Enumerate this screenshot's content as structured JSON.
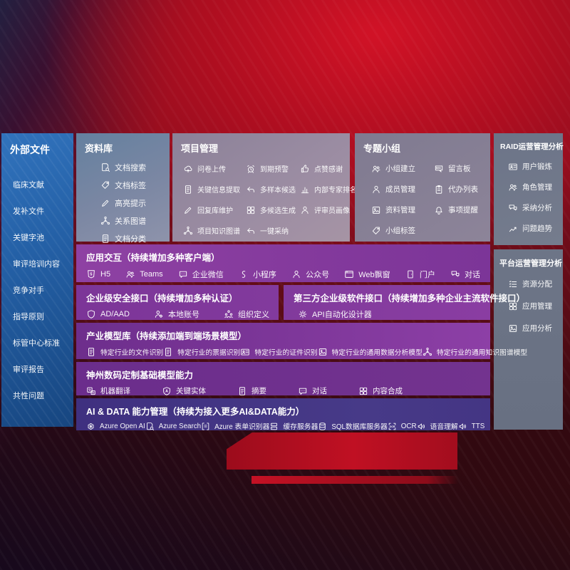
{
  "colors": {
    "background_red": "#a50e20",
    "sidebar_blue": "#2460a6",
    "panel_slate": "#6e7687",
    "panel_mauve": "#968ba1",
    "row_purple": "#7d3897",
    "row_indigo": "#433380"
  },
  "sidebar": {
    "title": "外部文件",
    "items": [
      {
        "label": "临床文献"
      },
      {
        "label": "发补文件"
      },
      {
        "label": "关键字池"
      },
      {
        "label": "审评培训内容"
      },
      {
        "label": "竞争对手"
      },
      {
        "label": "指导原则"
      },
      {
        "label": "标管中心标准"
      },
      {
        "label": "审评报告"
      },
      {
        "label": "共性问题"
      }
    ]
  },
  "panels": {
    "datalib": {
      "title": "资料库",
      "items": [
        {
          "icon": "document-search",
          "label": "文档搜索"
        },
        {
          "icon": "tag",
          "label": "文档标签"
        },
        {
          "icon": "highlight-pen",
          "label": "高亮提示"
        },
        {
          "icon": "knowledge-graph",
          "label": "关系图谱"
        },
        {
          "icon": "document-classify",
          "label": "文档分类"
        }
      ]
    },
    "project": {
      "title": "项目管理",
      "items": [
        {
          "icon": "cloud-upload",
          "label": "问卷上传"
        },
        {
          "icon": "alarm",
          "label": "到期预警"
        },
        {
          "icon": "thumbs-up",
          "label": "点赞感谢"
        },
        {
          "icon": "document-extract",
          "label": "关键信息提取"
        },
        {
          "icon": "reply-arrow",
          "label": "多样本候选"
        },
        {
          "icon": "ranking-chart",
          "label": "内部专家排名"
        },
        {
          "icon": "pencil",
          "label": "回复库维护"
        },
        {
          "icon": "multi-grid",
          "label": "多候选生成"
        },
        {
          "icon": "person",
          "label": "评审员画像"
        },
        {
          "icon": "knowledge-graph",
          "label": "项目知识图谱"
        },
        {
          "icon": "reply-arrow",
          "label": "一键采纳"
        }
      ]
    },
    "groups": {
      "title": "专题小组",
      "items": [
        {
          "icon": "people",
          "label": "小组建立"
        },
        {
          "icon": "message-board",
          "label": "留言板"
        },
        {
          "icon": "person",
          "label": "成员管理"
        },
        {
          "icon": "clipboard",
          "label": "代办列表"
        },
        {
          "icon": "photo",
          "label": "资料管理"
        },
        {
          "icon": "bell",
          "label": "事项提醒"
        },
        {
          "icon": "tag",
          "label": "小组标签"
        }
      ]
    },
    "raid": {
      "title": "RAID运营管理分析",
      "items": [
        {
          "icon": "id-card",
          "label": "用户锻炼"
        },
        {
          "icon": "people",
          "label": "角色管理"
        },
        {
          "icon": "chat-analysis",
          "label": "采纳分析"
        },
        {
          "icon": "trend-chart",
          "label": "问题趋势"
        }
      ]
    },
    "platform": {
      "title": "平台运营管理分析",
      "items": [
        {
          "icon": "allocation-list",
          "label": "资源分配"
        },
        {
          "icon": "app-grid",
          "label": "应用管理"
        },
        {
          "icon": "app-report",
          "label": "应用分析"
        }
      ]
    }
  },
  "rows": {
    "interaction": {
      "title": "应用交互（持续增加多种客户端）",
      "items": [
        {
          "icon": "html5",
          "label": "H5"
        },
        {
          "icon": "teams",
          "label": "Teams"
        },
        {
          "icon": "wechat-work",
          "label": "企业微信"
        },
        {
          "icon": "mini-program",
          "label": "小程序"
        },
        {
          "icon": "official-account",
          "label": "公众号"
        },
        {
          "icon": "web-window",
          "label": "Web飘窗"
        },
        {
          "icon": "portal",
          "label": "门户"
        },
        {
          "icon": "conversation",
          "label": "对话"
        }
      ]
    },
    "security": {
      "title": "企业级安全接口（持续增加多种认证）",
      "items": [
        {
          "icon": "shield",
          "label": "AD/AAD"
        },
        {
          "icon": "local-account",
          "label": "本地账号"
        },
        {
          "icon": "org-define",
          "label": "组织定义"
        }
      ]
    },
    "thirdparty": {
      "title": "第三方企业级软件接口（持续增加多种企业主流软件接口）",
      "items": [
        {
          "icon": "api-gear",
          "label": "API自动化设计器"
        }
      ]
    },
    "models": {
      "title": "产业模型库（持续添加端到端场景模型）",
      "items": [
        {
          "icon": "document",
          "label": "特定行业的文件识别"
        },
        {
          "icon": "receipt",
          "label": "特定行业的票据识别"
        },
        {
          "icon": "id-card",
          "label": "特定行业的证件识别"
        },
        {
          "icon": "photo-chart",
          "label": "特定行业的通用数据分析模型"
        },
        {
          "icon": "knowledge-graph",
          "label": "特定行业的通用知识图谱模型"
        }
      ]
    },
    "base_models": {
      "title": "神州数码定制基础模型能力",
      "items": [
        {
          "icon": "translate",
          "label": "机器翻译"
        },
        {
          "icon": "shield-a",
          "label": "关键实体"
        },
        {
          "icon": "document",
          "label": "摘要"
        },
        {
          "icon": "chat",
          "label": "对话"
        },
        {
          "icon": "multi-grid",
          "label": "内容合成"
        }
      ]
    },
    "ai_data": {
      "title": "AI & DATA 能力管理（持续为接入更多AI&DATA能力）",
      "items": [
        {
          "icon": "openai",
          "label": "Azure Open AI"
        },
        {
          "icon": "document-search",
          "label": "Azure Search"
        },
        {
          "icon": "form-recognizer",
          "label": "Azure 表单识别器"
        },
        {
          "icon": "server",
          "label": "缓存服务器"
        },
        {
          "icon": "database",
          "label": "SQL数据库服务器"
        },
        {
          "icon": "ocr",
          "label": "OCR"
        },
        {
          "icon": "speech",
          "label": "语音理解"
        },
        {
          "icon": "tts",
          "label": "TTS"
        }
      ]
    }
  }
}
